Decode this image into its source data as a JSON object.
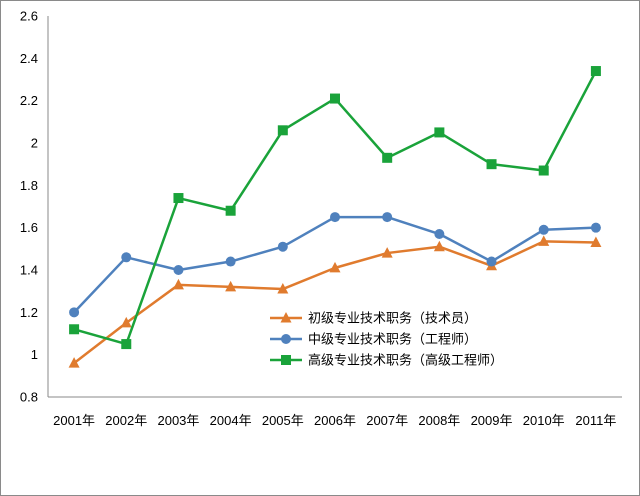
{
  "chart_data": {
    "type": "line",
    "title": "",
    "xlabel": "",
    "ylabel": "",
    "categories": [
      "2001年",
      "2002年",
      "2003年",
      "2004年",
      "2005年",
      "2006年",
      "2007年",
      "2008年",
      "2009年",
      "2010年",
      "2011年"
    ],
    "y_ticks": [
      "0.8",
      "1",
      "1.2",
      "1.4",
      "1.6",
      "1.8",
      "2",
      "2.2",
      "2.4",
      "2.6"
    ],
    "ylim": [
      0.8,
      2.6
    ],
    "grid": false,
    "legend_position": "center-right",
    "series": [
      {
        "name": "初级专业技术职务（技术员）",
        "color": "#E07B2E",
        "marker": "triangle",
        "values": [
          0.96,
          1.15,
          1.33,
          1.32,
          1.31,
          1.41,
          1.48,
          1.51,
          1.42,
          1.535,
          1.53
        ]
      },
      {
        "name": "中级专业技术职务（工程师）",
        "color": "#4F81BD",
        "marker": "circle",
        "values": [
          1.2,
          1.46,
          1.4,
          1.44,
          1.51,
          1.65,
          1.65,
          1.57,
          1.44,
          1.59,
          1.6
        ]
      },
      {
        "name": "高级专业技术职务（高级工程师）",
        "color": "#1AA33A",
        "marker": "square",
        "values": [
          1.12,
          1.05,
          1.74,
          1.68,
          2.06,
          2.21,
          1.93,
          2.05,
          1.9,
          1.87,
          2.34
        ]
      }
    ]
  }
}
